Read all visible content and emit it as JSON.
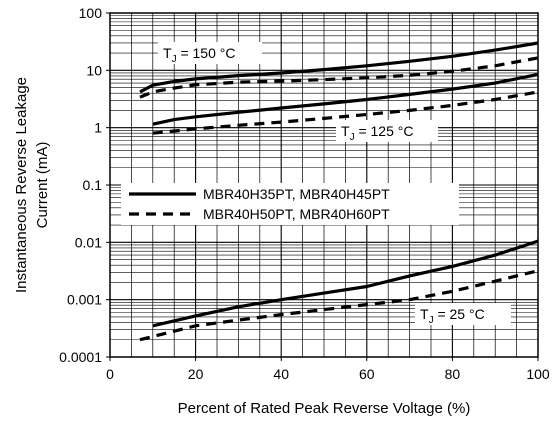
{
  "chart_data": {
    "type": "line",
    "xlabel": "Percent of Rated Peak Reverse Voltage (%)",
    "ylabel_line1": "Instantaneous Reverse Leakage",
    "ylabel_line2": "Current (mA)",
    "xlim": [
      0,
      100
    ],
    "ylim": [
      0.0001,
      100
    ],
    "yscale": "log",
    "grid": true,
    "x_ticks": [
      0,
      20,
      40,
      60,
      80,
      100
    ],
    "x_tick_labels": [
      "0",
      "20",
      "40",
      "60",
      "80",
      "100"
    ],
    "y_ticks": [
      0.0001,
      0.001,
      0.01,
      0.1,
      1,
      10,
      100
    ],
    "y_tick_labels": [
      "0.0001",
      "0.001",
      "0.01",
      "0.1",
      "1",
      "10",
      "100"
    ],
    "legend_placement": "center-left",
    "legend": [
      {
        "label": "MBR40H35PT, MBR40H45PT",
        "style": "solid"
      },
      {
        "label": "MBR40H50PT, MBR40H60PT",
        "style": "dashed"
      }
    ],
    "annotations": [
      {
        "main": "T",
        "sub": "J",
        "rest": " = 150 °C"
      },
      {
        "main": "T",
        "sub": "J",
        "rest": " = 125 °C"
      },
      {
        "main": "T",
        "sub": "J",
        "rest": " = 25 °C"
      }
    ],
    "series": [
      {
        "group": "MBR40H35PT, MBR40H45PT",
        "condition": "TJ = 150 °C",
        "style": "solid",
        "x": [
          7,
          10,
          15,
          20,
          30,
          40,
          50,
          60,
          70,
          80,
          90,
          100
        ],
        "y": [
          4.2,
          5.5,
          6.4,
          7.1,
          8.1,
          9.0,
          10.3,
          12.0,
          14.4,
          17.6,
          22.5,
          30.0
        ]
      },
      {
        "group": "MBR40H50PT, MBR40H60PT",
        "condition": "TJ = 150 °C",
        "style": "dashed",
        "x": [
          7,
          10,
          15,
          20,
          30,
          40,
          50,
          60,
          70,
          80,
          90,
          100
        ],
        "y": [
          3.4,
          4.2,
          4.9,
          5.6,
          6.2,
          6.5,
          6.9,
          7.4,
          8.2,
          9.6,
          12.0,
          16.5
        ]
      },
      {
        "group": "MBR40H35PT, MBR40H45PT",
        "condition": "TJ = 125 °C",
        "style": "solid",
        "x": [
          10,
          15,
          20,
          30,
          40,
          50,
          60,
          70,
          80,
          90,
          100
        ],
        "y": [
          1.15,
          1.38,
          1.55,
          1.85,
          2.2,
          2.6,
          3.1,
          3.8,
          4.7,
          6.0,
          8.5
        ]
      },
      {
        "group": "MBR40H50PT, MBR40H60PT",
        "condition": "TJ = 125 °C",
        "style": "dashed",
        "x": [
          10,
          20,
          30,
          40,
          50,
          60,
          70,
          80,
          90,
          100
        ],
        "y": [
          0.8,
          0.95,
          1.1,
          1.25,
          1.45,
          1.7,
          2.0,
          2.45,
          3.1,
          4.2
        ]
      },
      {
        "group": "MBR40H35PT, MBR40H45PT",
        "condition": "TJ = 25 °C",
        "style": "solid",
        "x": [
          10,
          20,
          30,
          40,
          50,
          60,
          70,
          80,
          90,
          100
        ],
        "y": [
          0.00035,
          0.00052,
          0.00075,
          0.001,
          0.0013,
          0.0017,
          0.0026,
          0.0038,
          0.006,
          0.0105
        ]
      },
      {
        "group": "MBR40H50PT, MBR40H60PT",
        "condition": "TJ = 25 °C",
        "style": "dashed",
        "x": [
          7,
          20,
          30,
          40,
          50,
          60,
          70,
          80,
          90,
          100
        ],
        "y": [
          0.0002,
          0.00035,
          0.00044,
          0.00055,
          0.00067,
          0.00082,
          0.001,
          0.0014,
          0.0021,
          0.0032
        ]
      }
    ]
  }
}
